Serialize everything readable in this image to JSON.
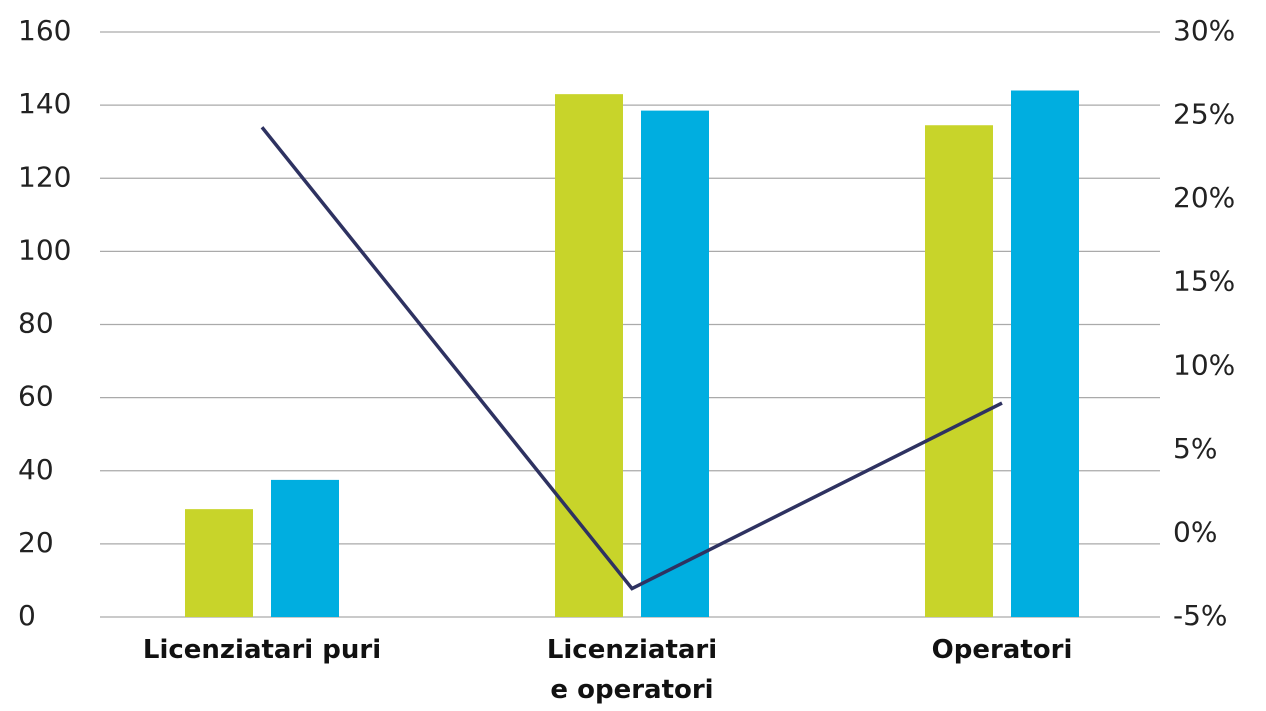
{
  "chart_data": {
    "type": "bar",
    "categories": [
      "Licenziatari puri",
      "Licenziatari\ne operatori",
      "Operatori"
    ],
    "series": [
      {
        "color": "#c8d42a",
        "values": [
          29.5,
          143,
          134.5
        ]
      },
      {
        "color": "#00aee0",
        "values": [
          37.5,
          138.5,
          144
        ]
      },
      {
        "type": "line",
        "axis": "y2",
        "color": "#2e3261",
        "values": [
          24.3,
          -3.3,
          7.8
        ]
      }
    ],
    "ylim": [
      0,
      160
    ],
    "yticks": [
      0,
      20,
      40,
      60,
      80,
      100,
      120,
      140,
      160
    ],
    "y2lim": [
      -5,
      30
    ],
    "y2ticks": [
      {
        "value": -5,
        "label": "-5%"
      },
      {
        "value": 0,
        "label": "0%"
      },
      {
        "value": 5,
        "label": "5%"
      },
      {
        "value": 10,
        "label": "10%"
      },
      {
        "value": 15,
        "label": "15%"
      },
      {
        "value": 20,
        "label": "20%"
      },
      {
        "value": 25,
        "label": "25%"
      },
      {
        "value": 30,
        "label": "30%"
      }
    ],
    "grid": true
  }
}
